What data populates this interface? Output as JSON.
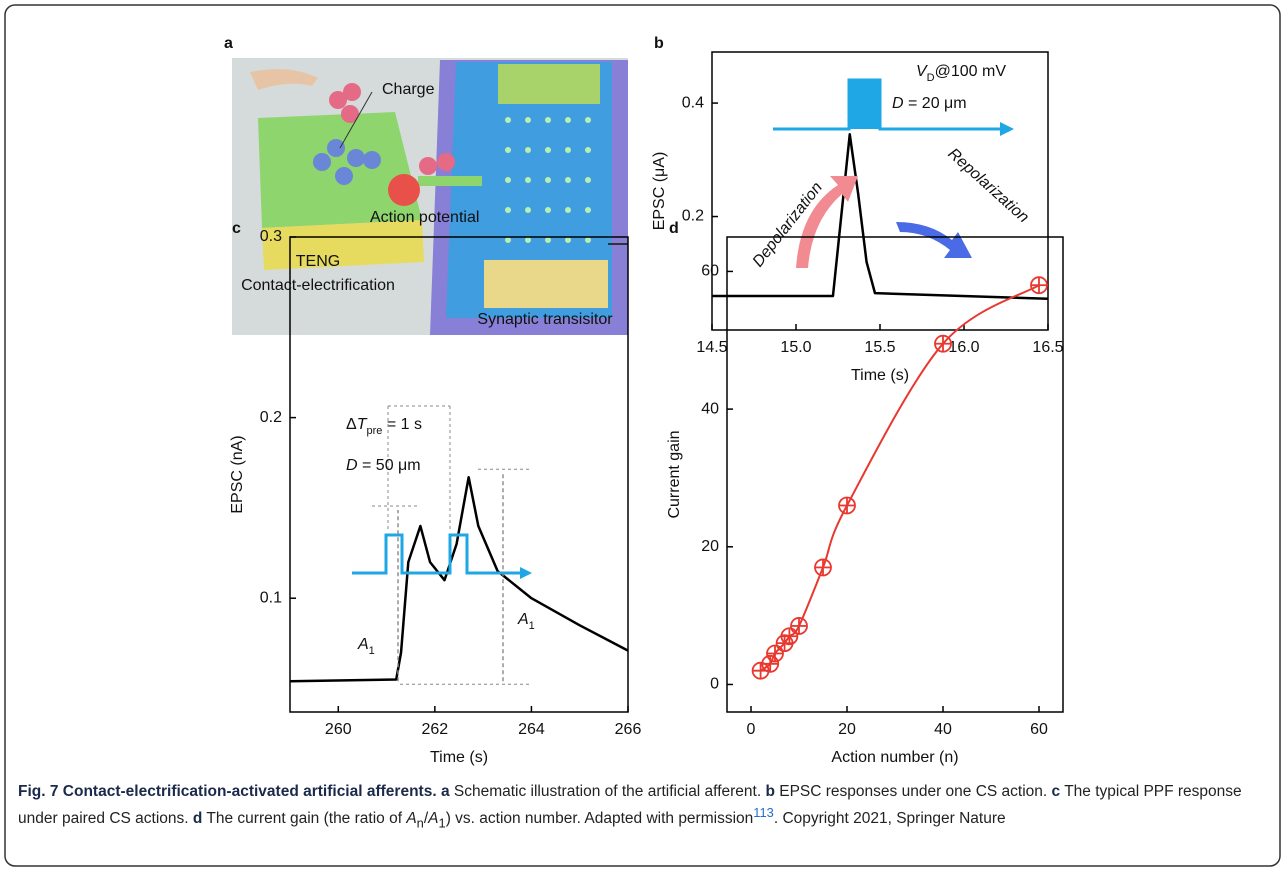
{
  "panel_a": {
    "label": "a",
    "charge": "Charge",
    "action_potential": "Action potential",
    "teng": "TENG",
    "contact": "Contact-electrification",
    "synaptic": "Synaptic transisitor"
  },
  "chart_data": [
    {
      "panel": "b",
      "type": "line",
      "x_label": "Time (s)",
      "y_label": "EPSC (μA)",
      "x": [
        14.5,
        15.22,
        15.32,
        15.37,
        15.42,
        15.47,
        16.5
      ],
      "values": [
        0.06,
        0.06,
        0.345,
        0.24,
        0.12,
        0.065,
        0.055
      ],
      "color": "#000000",
      "xlim": [
        14.5,
        16.5
      ],
      "ylim": [
        0,
        0.49
      ],
      "xticks": [
        14.5,
        {
          "value": 15,
          "label": "15.0"
        },
        15.5,
        {
          "value": 16,
          "label": "16.0"
        },
        16.5
      ],
      "yticks": [
        0.2,
        0.4
      ],
      "vd": {
        "main": "V",
        "sub": "D",
        "rest": "@100 mV"
      },
      "pulse": {
        "italic": "D",
        "rest": " = 20 μm"
      },
      "depolarization": "Depolarization",
      "repolarization": "Repolarization"
    },
    {
      "panel": "c",
      "type": "line",
      "x_label": "Time (s)",
      "y_label": "EPSC (nA)",
      "x": [
        259,
        261.2,
        261.3,
        261.45,
        261.7,
        261.9,
        262.2,
        262.45,
        262.7,
        262.9,
        263.3,
        264,
        265,
        266
      ],
      "values": [
        0.054,
        0.055,
        0.07,
        0.12,
        0.14,
        0.12,
        0.11,
        0.13,
        0.167,
        0.14,
        0.115,
        0.1,
        0.085,
        0.071
      ],
      "color": "#000000",
      "xlim": [
        259,
        266
      ],
      "ylim": [
        0.037,
        0.3
      ],
      "xticks": [
        260,
        262,
        264,
        266
      ],
      "yticks": [
        0.1,
        0.2,
        0.3
      ],
      "interval": {
        "delta": "Δ",
        "italic": "T",
        "sub": "pre",
        "rest": " = 1 s"
      },
      "pulse": {
        "italic": "D",
        "rest": " = 50 μm"
      },
      "a1_left": {
        "italic": "A",
        "sub": "1"
      },
      "a1_right": {
        "italic": "A",
        "sub": "1"
      }
    },
    {
      "panel": "d",
      "type": "scatter",
      "x_label": "Action number (n)",
      "y_label": "Current gain",
      "x": [
        2,
        4,
        5,
        7,
        8,
        10,
        15,
        20,
        40,
        60
      ],
      "values": [
        2,
        3,
        4.5,
        6,
        7,
        8.5,
        17,
        26,
        49.5,
        58
      ],
      "color": "#e8382f",
      "xlim": [
        -5,
        65
      ],
      "ylim": [
        -4,
        65
      ],
      "xticks": [
        0,
        20,
        40,
        60
      ],
      "yticks": [
        0,
        20,
        40,
        60
      ]
    }
  ],
  "caption": {
    "label": "Fig. 7",
    "title": "Contact-electrification-activated artificial afferents.",
    "a": "a",
    "a_text": "Schematic illustration of the artificial afferent.",
    "b": "b",
    "b_text": "EPSC responses under one CS action.",
    "c": "c",
    "c_text": "The typical PPF response under paired CS actions.",
    "d": "d",
    "d_segments": [
      "The current gain (the ratio of ",
      "A",
      "n",
      "/",
      "A",
      "1",
      ") vs. action number. Adapted with permission",
      "113",
      ". Copyright 2021, Springer Nature"
    ]
  }
}
